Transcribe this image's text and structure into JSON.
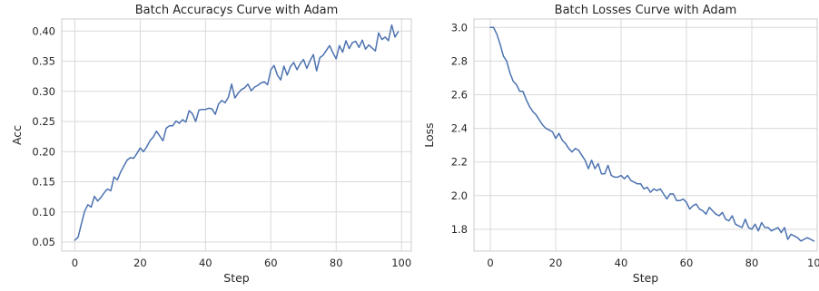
{
  "chart_data": [
    {
      "type": "line",
      "title": "Batch Accuracys Curve with Adam",
      "xlabel": "Step",
      "ylabel": "Acc",
      "xlim": [
        -4,
        103
      ],
      "ylim": [
        0.035,
        0.42
      ],
      "xticks": [
        0,
        20,
        40,
        60,
        80,
        100
      ],
      "yticks": [
        0.05,
        0.1,
        0.15,
        0.2,
        0.25,
        0.3,
        0.35,
        0.4
      ],
      "ytick_labels": [
        "0.05",
        "0.10",
        "0.15",
        "0.20",
        "0.25",
        "0.30",
        "0.35",
        "0.40"
      ],
      "grid": true,
      "color": "#4c72b0",
      "series": [
        {
          "x": [
            0,
            1,
            2,
            3,
            4,
            5,
            6,
            7,
            8,
            9,
            10,
            11,
            12,
            13,
            14,
            15,
            16,
            17,
            18,
            19,
            20,
            21,
            22,
            23,
            24,
            25,
            26,
            27,
            28,
            29,
            30,
            31,
            32,
            33,
            34,
            35,
            36,
            37,
            38,
            39,
            40,
            41,
            42,
            43,
            44,
            45,
            46,
            47,
            48,
            49,
            50,
            51,
            52,
            53,
            54,
            55,
            56,
            57,
            58,
            59,
            60,
            61,
            62,
            63,
            64,
            65,
            66,
            67,
            68,
            69,
            70,
            71,
            72,
            73,
            74,
            75,
            76,
            77,
            78,
            79,
            80,
            81,
            82,
            83,
            84,
            85,
            86,
            87,
            88,
            89,
            90,
            91,
            92,
            93,
            94,
            95,
            96,
            97,
            98,
            99
          ],
          "values": [
            0.053,
            0.058,
            0.08,
            0.101,
            0.112,
            0.108,
            0.126,
            0.118,
            0.124,
            0.132,
            0.138,
            0.135,
            0.158,
            0.153,
            0.166,
            0.176,
            0.186,
            0.19,
            0.189,
            0.197,
            0.206,
            0.2,
            0.208,
            0.218,
            0.224,
            0.234,
            0.226,
            0.218,
            0.239,
            0.243,
            0.243,
            0.251,
            0.247,
            0.253,
            0.249,
            0.268,
            0.263,
            0.25,
            0.269,
            0.27,
            0.27,
            0.272,
            0.271,
            0.262,
            0.279,
            0.285,
            0.281,
            0.29,
            0.312,
            0.289,
            0.297,
            0.303,
            0.306,
            0.312,
            0.301,
            0.307,
            0.31,
            0.314,
            0.316,
            0.311,
            0.336,
            0.343,
            0.327,
            0.319,
            0.342,
            0.327,
            0.341,
            0.348,
            0.336,
            0.346,
            0.353,
            0.338,
            0.351,
            0.361,
            0.334,
            0.356,
            0.36,
            0.368,
            0.376,
            0.364,
            0.354,
            0.376,
            0.365,
            0.384,
            0.371,
            0.381,
            0.383,
            0.373,
            0.385,
            0.37,
            0.377,
            0.372,
            0.367,
            0.397,
            0.386,
            0.39,
            0.384,
            0.41,
            0.39,
            0.399
          ]
        }
      ]
    },
    {
      "type": "line",
      "title": "Batch Losses Curve with Adam",
      "xlabel": "Step",
      "ylabel": "Loss",
      "xlim": [
        -5,
        100
      ],
      "ylim": [
        1.67,
        3.05
      ],
      "xticks": [
        0,
        20,
        40,
        60,
        80,
        100
      ],
      "yticks": [
        1.8,
        2.0,
        2.2,
        2.4,
        2.6,
        2.8,
        3.0
      ],
      "ytick_labels": [
        "1.8",
        "2.0",
        "2.2",
        "2.4",
        "2.6",
        "2.8",
        "3.0"
      ],
      "grid": true,
      "color": "#4c72b0",
      "series": [
        {
          "x": [
            0,
            1,
            2,
            3,
            4,
            5,
            6,
            7,
            8,
            9,
            10,
            11,
            12,
            13,
            14,
            15,
            16,
            17,
            18,
            19,
            20,
            21,
            22,
            23,
            24,
            25,
            26,
            27,
            28,
            29,
            30,
            31,
            32,
            33,
            34,
            35,
            36,
            37,
            38,
            39,
            40,
            41,
            42,
            43,
            44,
            45,
            46,
            47,
            48,
            49,
            50,
            51,
            52,
            53,
            54,
            55,
            56,
            57,
            58,
            59,
            60,
            61,
            62,
            63,
            64,
            65,
            66,
            67,
            68,
            69,
            70,
            71,
            72,
            73,
            74,
            75,
            76,
            77,
            78,
            79,
            80,
            81,
            82,
            83,
            84,
            85,
            86,
            87,
            88,
            89,
            90,
            91,
            92,
            93,
            94,
            95,
            96,
            97,
            98,
            99
          ],
          "values": [
            3.0,
            3.0,
            2.96,
            2.9,
            2.83,
            2.8,
            2.73,
            2.68,
            2.66,
            2.62,
            2.62,
            2.57,
            2.53,
            2.5,
            2.48,
            2.45,
            2.42,
            2.4,
            2.39,
            2.38,
            2.34,
            2.37,
            2.33,
            2.31,
            2.28,
            2.26,
            2.28,
            2.27,
            2.24,
            2.21,
            2.16,
            2.21,
            2.16,
            2.19,
            2.13,
            2.13,
            2.18,
            2.12,
            2.11,
            2.11,
            2.12,
            2.1,
            2.12,
            2.09,
            2.08,
            2.07,
            2.07,
            2.04,
            2.05,
            2.02,
            2.04,
            2.03,
            2.04,
            2.01,
            1.98,
            2.01,
            2.01,
            1.97,
            1.97,
            1.98,
            1.96,
            1.92,
            1.94,
            1.95,
            1.92,
            1.91,
            1.89,
            1.93,
            1.91,
            1.89,
            1.88,
            1.9,
            1.86,
            1.85,
            1.88,
            1.83,
            1.82,
            1.81,
            1.86,
            1.81,
            1.8,
            1.83,
            1.79,
            1.84,
            1.81,
            1.81,
            1.79,
            1.8,
            1.81,
            1.78,
            1.81,
            1.74,
            1.77,
            1.76,
            1.75,
            1.73,
            1.74,
            1.75,
            1.74,
            1.73
          ]
        }
      ]
    }
  ]
}
